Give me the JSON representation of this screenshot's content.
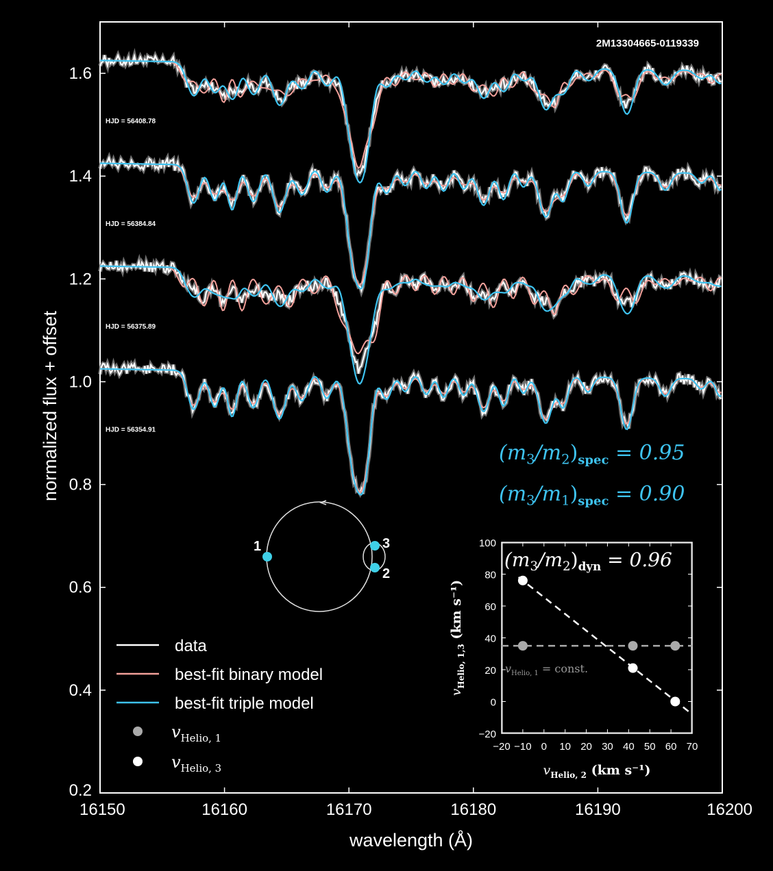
{
  "chart_data": [
    {
      "type": "line",
      "title": "2M13304665-0119339",
      "xlabel": "wavelength (Å)",
      "ylabel": "normalized flux + offset",
      "xlim": [
        16150,
        16200
      ],
      "ylim": [
        0.2,
        1.7
      ],
      "xticks": [
        "16150",
        "16160",
        "16170",
        "16180",
        "16190",
        "16200"
      ],
      "yticks": [
        "0.2",
        "0.4",
        "0.6",
        "0.8",
        "1.0",
        "1.2",
        "1.4",
        "1.6"
      ],
      "grid": false,
      "legend_position": "bottom-left",
      "legend": [
        {
          "label": "data",
          "color": "#ffffff"
        },
        {
          "label": "best-fit binary model",
          "color": "#f2a09a"
        },
        {
          "label": "best-fit triple model",
          "color": "#3ec3f0"
        }
      ],
      "legend_markers": [
        {
          "label": "v",
          "sub": "Helio, 1",
          "color": "#aaaaaa"
        },
        {
          "label": "v",
          "sub": "Helio, 3",
          "color": "#ffffff"
        }
      ],
      "epochs": [
        {
          "label": "HJD = 56408.78",
          "offset": 1.6
        },
        {
          "label": "HJD = 56384.84",
          "offset": 1.4
        },
        {
          "label": "HJD = 56375.89",
          "offset": 1.2
        },
        {
          "label": "HJD = 56354.91",
          "offset": 1.0
        }
      ],
      "annotations": [
        {
          "base": "(m",
          "i1": "3",
          "mid": "/m",
          "i2": "2",
          "tail": ")",
          "sub": "spec",
          "value": "= 0.95"
        },
        {
          "base": "(m",
          "i1": "3",
          "mid": "/m",
          "i2": "1",
          "tail": ")",
          "sub": "spec",
          "value": "= 0.90"
        }
      ],
      "colors": {
        "data": "#ffffff",
        "binary": "#f2a09a",
        "triple": "#3ec3f0",
        "band": "#8a8a8a"
      }
    },
    {
      "type": "scatter",
      "xlabel": "v",
      "xlabel_sub": "Helio, 2",
      "xlabel_unit": "(km s⁻¹)",
      "ylabel": "v",
      "ylabel_sub": "Helio, 1,3",
      "ylabel_unit": "(km s⁻¹)",
      "xlim": [
        -20,
        70
      ],
      "ylim": [
        -20,
        100
      ],
      "xticks": [
        "−20",
        "−10",
        "0",
        "10",
        "20",
        "30",
        "40",
        "50",
        "60",
        "70"
      ],
      "yticks": [
        "−20",
        "0",
        "20",
        "40",
        "60",
        "80",
        "100"
      ],
      "annotation": {
        "base": "(m",
        "i1": "3",
        "mid": "/m",
        "i2": "2",
        "tail": ")",
        "sub": "dyn",
        "value": "= 0.96"
      },
      "const_label": {
        "base": "v",
        "sub": "Helio, 1",
        "value": "= const."
      },
      "series": [
        {
          "name": "v_Helio,1",
          "color": "#aaaaaa",
          "x": [
            -10,
            42,
            62
          ],
          "y": [
            35,
            35,
            35
          ],
          "fit": {
            "type": "constant",
            "y": 35
          }
        },
        {
          "name": "v_Helio,3",
          "color": "#ffffff",
          "x": [
            -10,
            42,
            62
          ],
          "y": [
            76,
            21,
            0
          ],
          "fit": {
            "type": "linear",
            "slope": -1.05,
            "intercept": 65.5
          }
        }
      ]
    }
  ],
  "orbit_labels": [
    "1",
    "2",
    "3"
  ],
  "orbit_colors": {
    "line": "#e0e0e0",
    "dot": "#3fd0e8"
  }
}
